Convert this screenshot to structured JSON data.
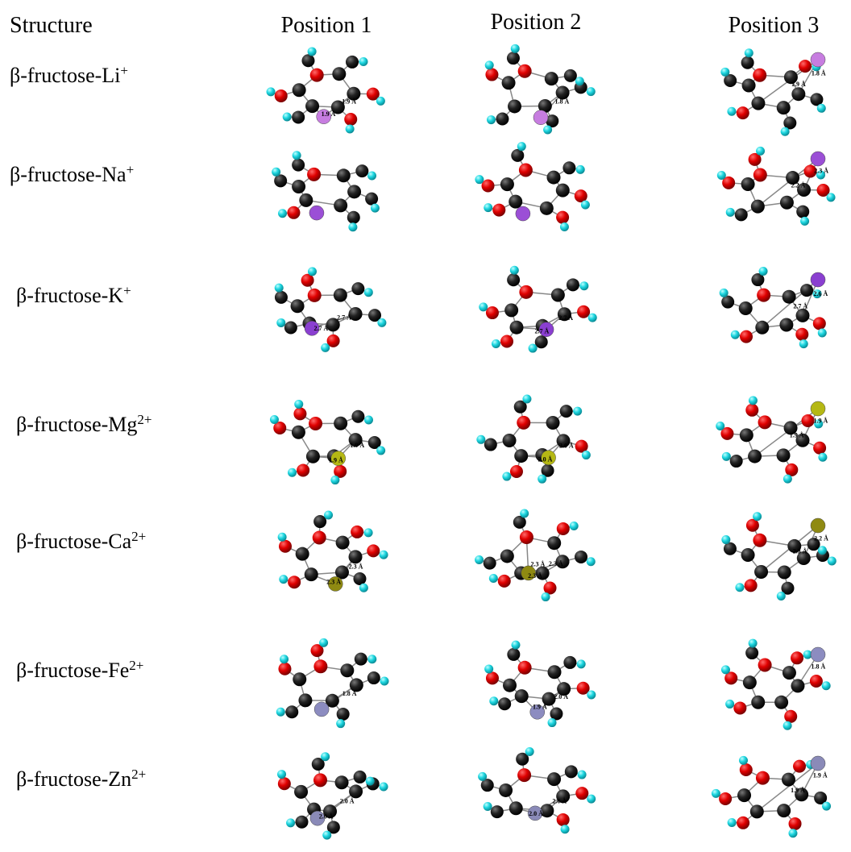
{
  "header": [
    "Structure",
    "Position 1",
    "Position 2",
    "Position 3"
  ],
  "rows": [
    {
      "label": "β-fructose-Li",
      "charge": "+",
      "ion_color": "#c77de0",
      "cells": [
        [
          "1.9 Å",
          "1.9 Å"
        ],
        [
          "1.8 Å"
        ],
        [
          "1.8 Å",
          "1.9 Å"
        ]
      ]
    },
    {
      "label": "β-fructose-Na",
      "charge": "+",
      "ion_color": "#9b4fd6",
      "cells": [
        [],
        [],
        [
          "2.3 Å",
          "2.2 Å"
        ]
      ]
    },
    {
      "label": "β-fructose-K",
      "charge": "+",
      "ion_color": "#8a3fd0",
      "cells": [
        [
          "2.7 Å",
          "2.7 Å"
        ],
        [
          "2.7 Å",
          "2.7 Å"
        ],
        [
          "2.6 Å",
          "2.7 Å"
        ]
      ]
    },
    {
      "label": "β-fructose-Mg",
      "charge": "2+",
      "ion_color": "#b5b814",
      "cells": [
        [
          "1.9 Å",
          "1.9 Å"
        ],
        [
          "2.0 Å",
          "2.0 Å"
        ],
        [
          "1.9 Å",
          "1.9 Å"
        ]
      ]
    },
    {
      "label": "β-fructose-Ca",
      "charge": "2+",
      "ion_color": "#8f8a12",
      "cells": [
        [
          "2.3 Å",
          "2.3 Å"
        ],
        [
          "2.3 Å",
          "2.3 Å",
          "2.3 Å"
        ],
        [
          "2.2 Å",
          "2.3 Å"
        ]
      ]
    },
    {
      "label": "β-fructose-Fe",
      "charge": "2+",
      "ion_color": "#8c8cc0",
      "cells": [
        [
          "1.8 Å"
        ],
        [
          "2.0 Å",
          "1.9 Å"
        ],
        [
          "1.8 Å"
        ]
      ]
    },
    {
      "label": "β-fructose-Zn",
      "charge": "2+",
      "ion_color": "#8a8ab8",
      "cells": [
        [
          "2.0 Å",
          "2.0 Å"
        ],
        [
          "2.0 Å",
          "2.0 Å"
        ],
        [
          "1.9 Å",
          "1.9 Å"
        ]
      ]
    }
  ]
}
